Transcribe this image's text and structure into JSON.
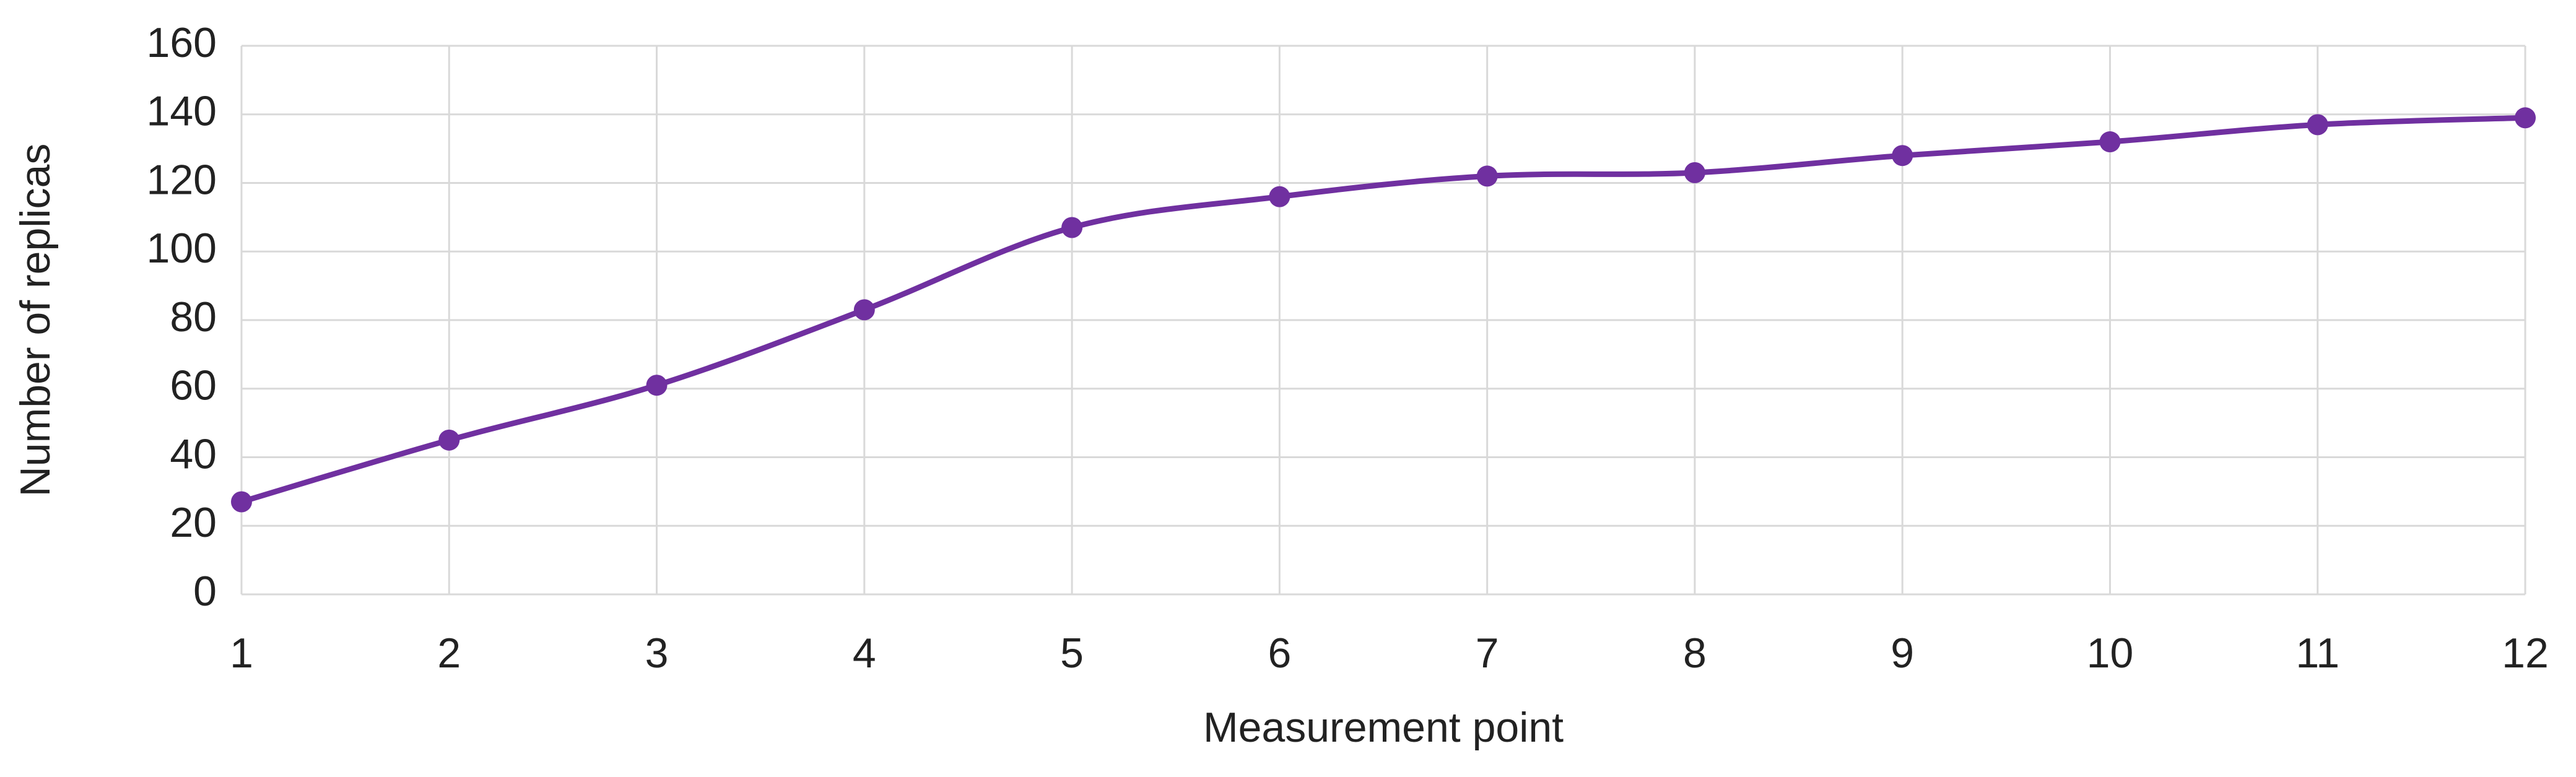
{
  "chart_data": {
    "type": "line",
    "x_label": "Measurement point",
    "y_label": "Number of replicas",
    "x": [
      1,
      2,
      3,
      4,
      5,
      6,
      7,
      8,
      9,
      10,
      11,
      12
    ],
    "series": [
      {
        "name": "Number of replicas",
        "color": "#7030a0",
        "values": [
          27,
          45,
          61,
          83,
          107,
          116,
          122,
          123,
          128,
          132,
          137,
          139
        ]
      }
    ],
    "xlim": [
      1,
      12
    ],
    "xticks": [
      1,
      2,
      3,
      4,
      5,
      6,
      7,
      8,
      9,
      10,
      11,
      12
    ],
    "ylim": [
      0,
      160
    ],
    "yticks": [
      0,
      20,
      40,
      60,
      80,
      100,
      120,
      140,
      160
    ],
    "grid": true,
    "smooth": true
  }
}
